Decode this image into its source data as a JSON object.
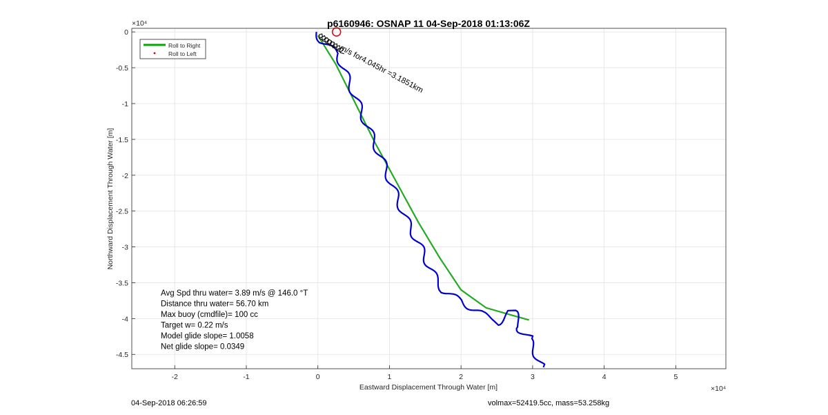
{
  "chart_data": {
    "type": "line",
    "title": "p6160946: OSNAP 11 04-Sep-2018 01:13:06Z",
    "xlabel": "Eastward Displacement Through Water [m]",
    "ylabel": "Northward Displacement Through Water [m]",
    "x_exponent": "×10⁴",
    "y_exponent": "×10⁴",
    "xlim": [
      -2.6,
      5.7
    ],
    "ylim": [
      -4.7,
      0.05
    ],
    "x_ticks": [
      -2,
      -1,
      0,
      1,
      2,
      3,
      4,
      5
    ],
    "x_tick_labels": [
      "-2",
      "-1",
      "0",
      "1",
      "2",
      "3",
      "4",
      "5"
    ],
    "y_ticks": [
      0,
      -0.5,
      -1,
      -1.5,
      -2,
      -2.5,
      -3,
      -3.5,
      -4,
      -4.5
    ],
    "y_tick_labels": [
      "0",
      "-0.5",
      "-1",
      "-1.5",
      "-2",
      "-2.5",
      "-3",
      "-3.5",
      "-4",
      "-4.5"
    ],
    "grid": true,
    "legend": {
      "placement": "top-left",
      "entries": [
        {
          "label": "Roll to Right",
          "color": "#00aa00",
          "style": "line"
        },
        {
          "label": "Roll to Left",
          "color": "#cc0000",
          "style": "dot"
        }
      ]
    },
    "series": [
      {
        "name": "Roll to Right",
        "color": "#22aa22",
        "x": [
          0.0,
          0.25,
          0.55,
          0.8,
          1.1,
          1.4,
          1.7,
          2.0,
          2.35,
          2.7,
          2.95
        ],
        "y": [
          -0.05,
          -0.45,
          -1.05,
          -1.55,
          -2.1,
          -2.65,
          -3.15,
          -3.6,
          -3.85,
          -3.95,
          -4.02
        ]
      },
      {
        "name": "",
        "color": "#0000cc",
        "x": [
          -0.02,
          0.05,
          0.15,
          0.28,
          0.35,
          0.5,
          0.62,
          0.75,
          0.88,
          1.0,
          1.12,
          1.25,
          1.38,
          1.5,
          1.62,
          1.75,
          1.88,
          2.0,
          2.15,
          2.3,
          2.5,
          2.7,
          2.85,
          2.95,
          3.05,
          3.15
        ],
        "y": [
          0.0,
          -0.12,
          -0.22,
          -0.3,
          -0.5,
          -0.85,
          -1.15,
          -1.45,
          -1.75,
          -2.05,
          -2.35,
          -2.65,
          -2.9,
          -3.15,
          -3.4,
          -3.6,
          -3.7,
          -3.75,
          -3.85,
          -3.95,
          -4.0,
          -3.95,
          -4.1,
          -4.3,
          -4.5,
          -4.68
        ]
      }
    ],
    "markers": [
      {
        "type": "circle",
        "color": "#dd1111",
        "x": 0.26,
        "y": 0.0
      }
    ],
    "annotations": [
      {
        "text": "...m/s for4.045hr =3.1851km",
        "x": 0.22,
        "y": -0.2,
        "angle": 28
      }
    ],
    "stats": [
      "Avg Spd thru water=  3.89 m/s @ 146.0 °T",
      "Distance thru water= 56.70 km",
      "Max buoy (cmdfile)= 100 cc",
      "Target w= 0.22 m/s",
      "Model glide slope= 1.0058",
      "Net glide slope= 0.0349"
    ]
  },
  "footer": {
    "left": "04-Sep-2018 06:26:59",
    "right": "volmax=52419.5cc, mass=53.258kg"
  }
}
